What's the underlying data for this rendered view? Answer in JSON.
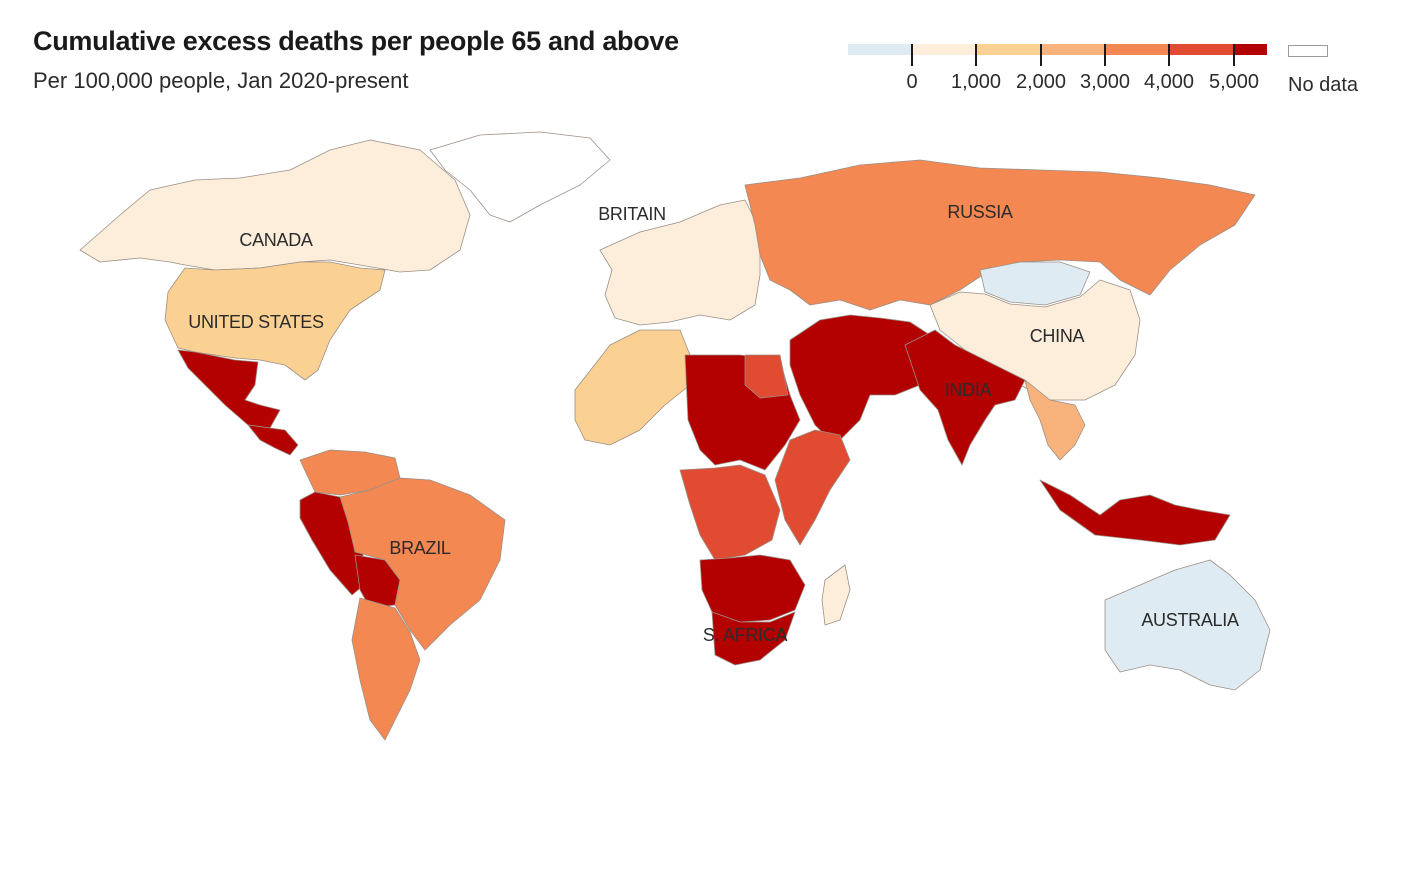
{
  "title": "Cumulative excess deaths per people 65 and above",
  "subtitle": "Per 100,000 people, Jan 2020-present",
  "legend": {
    "bins": [
      {
        "color": "#deebf2"
      },
      {
        "color": "#fdeedb"
      },
      {
        "color": "#fbd193"
      },
      {
        "color": "#f8b27c"
      },
      {
        "color": "#f48852"
      },
      {
        "color": "#e04b32"
      },
      {
        "color": "#b30000"
      }
    ],
    "ticks": [
      "0",
      "1,000",
      "2,000",
      "3,000",
      "4,000",
      "5,000"
    ],
    "no_data_label": "No data"
  },
  "country_labels": {
    "canada": "CANADA",
    "united_states": "UNITED STATES",
    "britain": "BRITAIN",
    "russia": "RUSSIA",
    "china": "CHINA",
    "india": "INDIA",
    "brazil": "BRAZIL",
    "s_africa": "S. AFRICA",
    "australia": "AUSTRALIA"
  },
  "regions": [
    {
      "name": "Canada",
      "color": "#fdeedb"
    },
    {
      "name": "United States",
      "color": "#fbd193"
    },
    {
      "name": "Mexico",
      "color": "#b30000"
    },
    {
      "name": "Central America",
      "color": "#b30000"
    },
    {
      "name": "Greenland",
      "color": "#ffffff"
    },
    {
      "name": "Peru",
      "color": "#b30000"
    },
    {
      "name": "Bolivia",
      "color": "#b30000"
    },
    {
      "name": "Brazil",
      "color": "#f48852"
    },
    {
      "name": "Argentina",
      "color": "#f48852"
    },
    {
      "name": "Colombia/Venezuela",
      "color": "#f48852"
    },
    {
      "name": "Europe",
      "color": "#fdeedb"
    },
    {
      "name": "Russia",
      "color": "#f48852"
    },
    {
      "name": "Mongolia",
      "color": "#deebf2"
    },
    {
      "name": "China",
      "color": "#fdeedb"
    },
    {
      "name": "Middle East",
      "color": "#b30000"
    },
    {
      "name": "India",
      "color": "#b30000"
    },
    {
      "name": "Southeast Asia",
      "color": "#f8b27c"
    },
    {
      "name": "Indonesia",
      "color": "#b30000"
    },
    {
      "name": "Australia",
      "color": "#deebf2"
    },
    {
      "name": "North Africa",
      "color": "#fbd193"
    },
    {
      "name": "Sahel",
      "color": "#b30000"
    },
    {
      "name": "Egypt",
      "color": "#e04b32"
    },
    {
      "name": "East Africa",
      "color": "#e04b32"
    },
    {
      "name": "Central Africa",
      "color": "#e04b32"
    },
    {
      "name": "Southern Africa",
      "color": "#b30000"
    },
    {
      "name": "South Africa",
      "color": "#b30000"
    },
    {
      "name": "Madagascar",
      "color": "#fdeedb"
    }
  ]
}
